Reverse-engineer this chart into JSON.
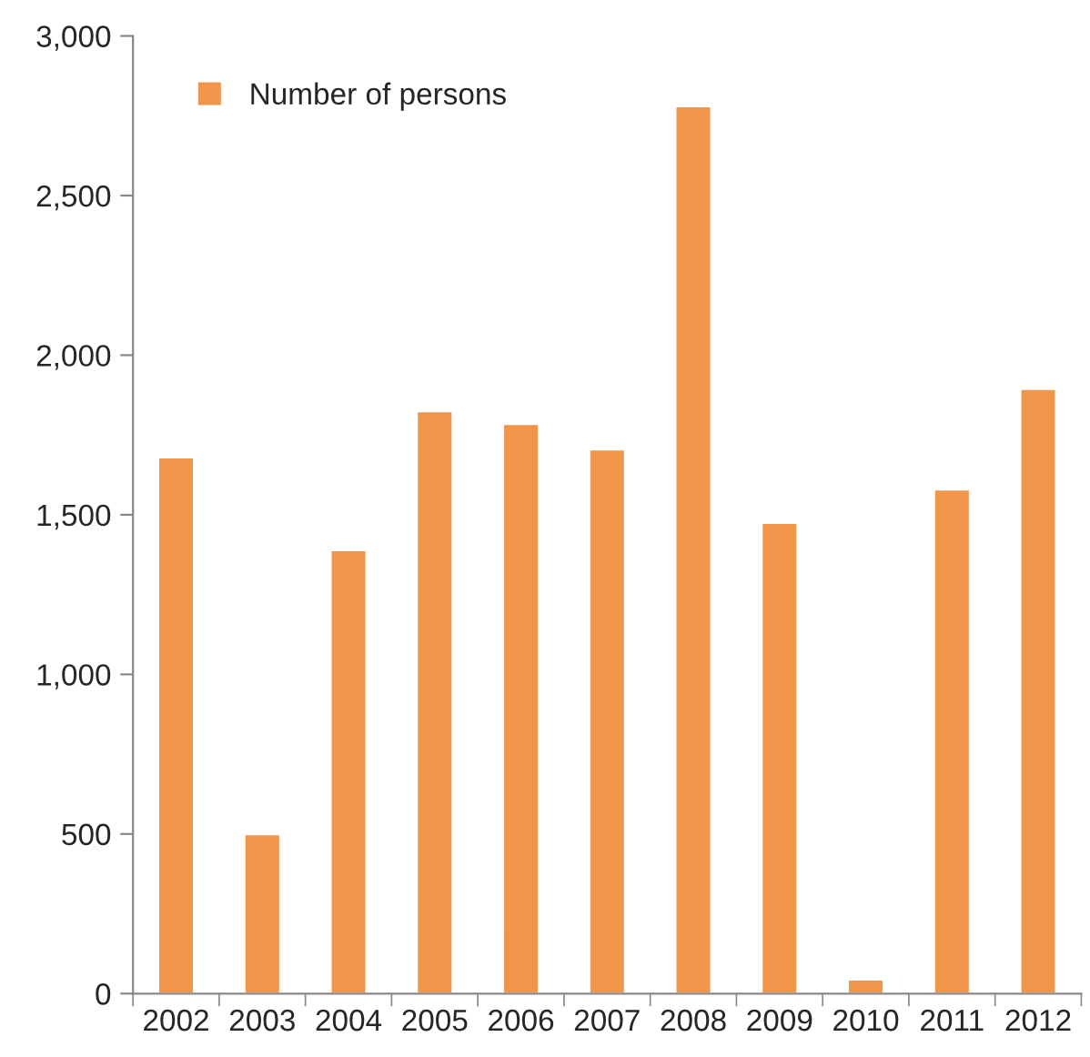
{
  "chart_data": {
    "type": "bar",
    "categories": [
      "2002",
      "2003",
      "2004",
      "2005",
      "2006",
      "2007",
      "2008",
      "2009",
      "2010",
      "2011",
      "2012"
    ],
    "series": [
      {
        "name": "Number of persons",
        "color": "#f0964a",
        "values": [
          1680,
          500,
          1390,
          1825,
          1785,
          1705,
          2780,
          1475,
          45,
          1580,
          1895
        ]
      }
    ],
    "ylim": [
      0,
      3000
    ],
    "yticks": [
      {
        "value": 0,
        "label": "0"
      },
      {
        "value": 500,
        "label": "500"
      },
      {
        "value": 1000,
        "label": "1,000"
      },
      {
        "value": 1500,
        "label": "1,500"
      },
      {
        "value": 2000,
        "label": "2,000"
      },
      {
        "value": 2500,
        "label": "2,500"
      },
      {
        "value": 3000,
        "label": "3,000"
      }
    ],
    "grid": false,
    "legend": "top left"
  }
}
